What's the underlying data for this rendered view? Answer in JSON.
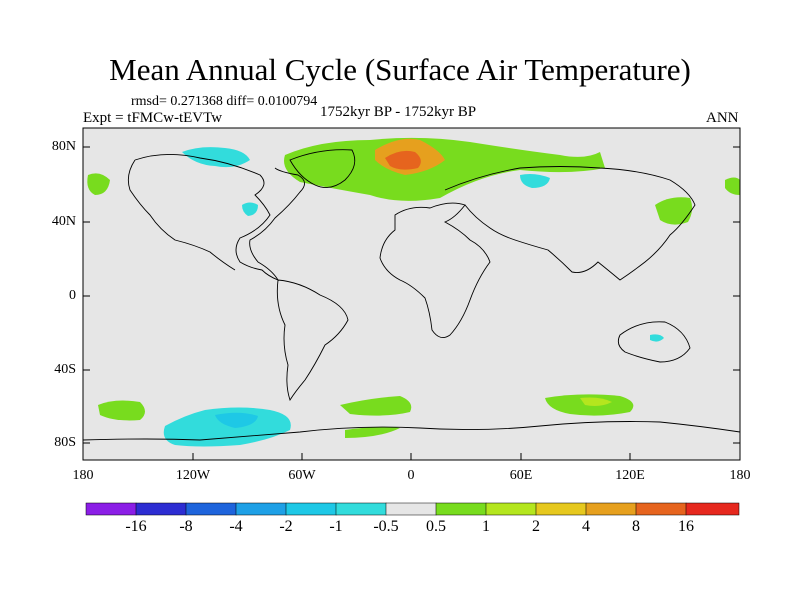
{
  "title": "Mean Annual Cycle (Surface Air Temperature)",
  "stats": "rmsd= 0.271368 diff= 0.0100794",
  "experiment": "Expt = tFMCw-tEVTw",
  "period": "1752kyr BP - 1752kyr BP",
  "season": "ANN",
  "lat_labels": [
    "80N",
    "40N",
    "0",
    "40S",
    "80S"
  ],
  "lon_labels": [
    "180",
    "120W",
    "60W",
    "0",
    "60E",
    "120E",
    "180"
  ],
  "colorbar": {
    "labels": [
      "-16",
      "-8",
      "-4",
      "-2",
      "-1",
      "-0.5",
      "0.5",
      "1",
      "2",
      "4",
      "8",
      "16"
    ],
    "colors": [
      "#8b1ee6",
      "#2d2dd2",
      "#1e64dc",
      "#1ea0e6",
      "#1ec8e6",
      "#32dcdc",
      "#e6e6e6",
      "#78dc1e",
      "#b4e61e",
      "#e6c81e",
      "#e6a01e",
      "#e6641e",
      "#e6281e"
    ]
  }
}
